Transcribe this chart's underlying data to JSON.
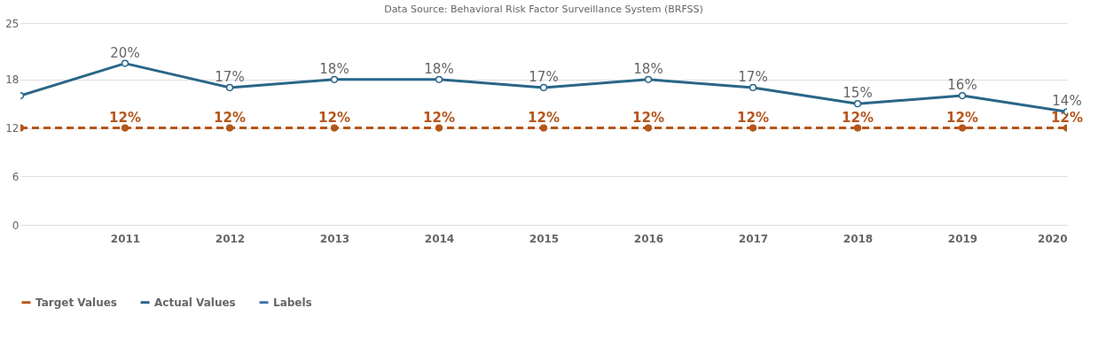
{
  "chart_data": {
    "type": "line",
    "title": "Data Source: Behavioral Risk Factor Surveillance System (BRFSS)",
    "x": [
      2010,
      2011,
      2012,
      2013,
      2014,
      2015,
      2016,
      2017,
      2018,
      2019,
      2020
    ],
    "series": [
      {
        "name": "Target Values",
        "color": "#b5561a",
        "line_style": "dashed",
        "values": [
          12,
          12,
          12,
          12,
          12,
          12,
          12,
          12,
          12,
          12,
          12
        ],
        "value_labels": [
          null,
          "12%",
          "12%",
          "12%",
          "12%",
          "12%",
          "12%",
          "12%",
          "12%",
          "12%",
          "12%"
        ]
      },
      {
        "name": "Actual Values",
        "color": "#2a6689",
        "line_style": "solid",
        "values": [
          16,
          20,
          17,
          18,
          18,
          17,
          18,
          17,
          15,
          16,
          14
        ],
        "value_labels": [
          null,
          "20%",
          "17%",
          "18%",
          "18%",
          "17%",
          "18%",
          "17%",
          "15%",
          "16%",
          "14%"
        ]
      },
      {
        "name": "Labels",
        "color": "#4572a7",
        "line_style": "solid",
        "values": [
          null,
          null,
          null,
          null,
          null,
          null,
          null,
          null,
          null,
          null,
          null
        ]
      }
    ],
    "marker": "circle",
    "xlim": [
      2010,
      2020
    ],
    "xticks": [
      2011,
      2012,
      2013,
      2014,
      2015,
      2016,
      2017,
      2018,
      2019,
      2020
    ],
    "ylim": [
      0,
      25
    ],
    "yticks": [
      0,
      6,
      12,
      18,
      25
    ],
    "grid": "y",
    "legend": "bottom"
  }
}
